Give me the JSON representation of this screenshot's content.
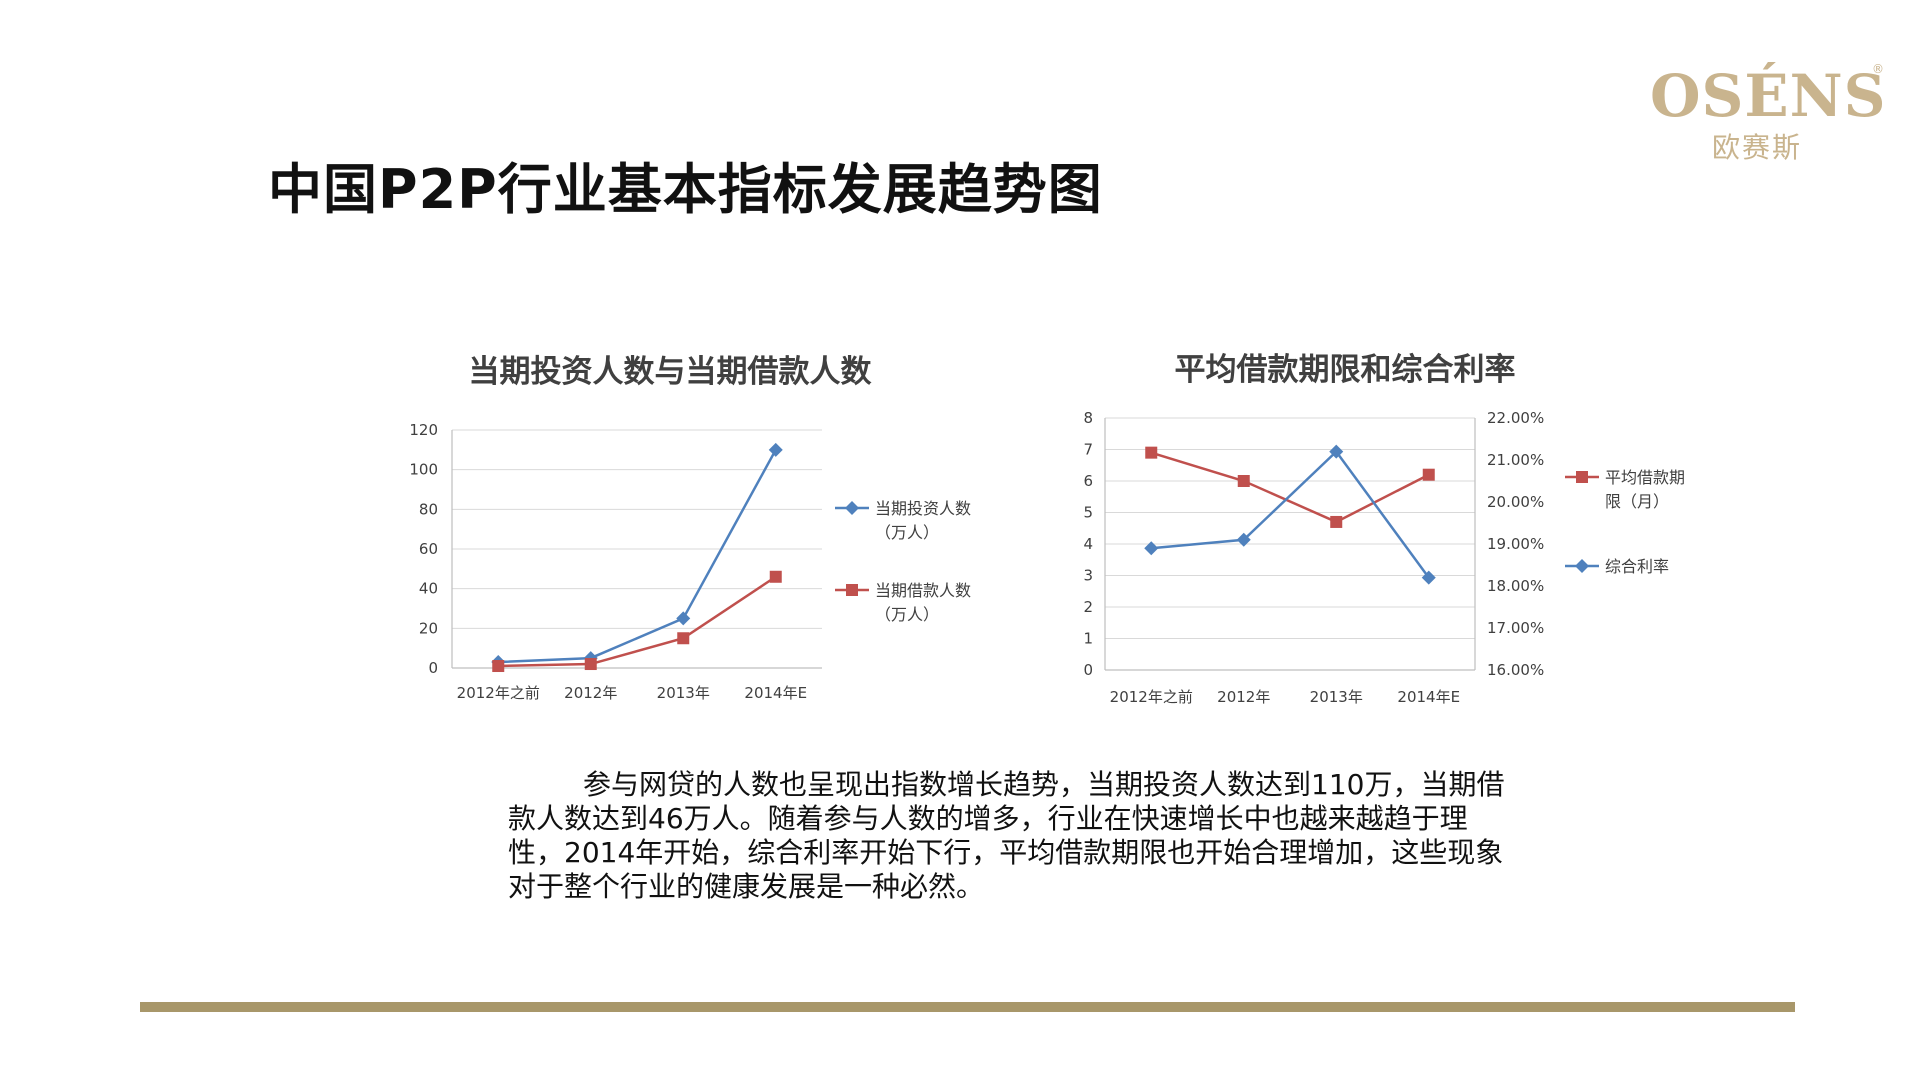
{
  "logo": {
    "main": "OSÉNS",
    "registered": "®",
    "sub": "欧赛斯"
  },
  "page_title": "中国P2P行业基本指标发展趋势图",
  "description": "参与网贷的人数也呈现出指数增长趋势，当期投资人数达到110万，当期借款人数达到46万人。随着参与人数的增多，行业在快速增长中也越来越趋于理性，2014年开始，综合利率开始下行，平均借款期限也开始合理增加，这些现象对于整个行业的健康发展是一种必然。",
  "colors": {
    "blue": "#4f81bd",
    "red": "#c0504d",
    "brand": "#c9b48e",
    "footer": "#a8976a"
  },
  "chart_data": [
    {
      "type": "line",
      "title": "当期投资人数与当期借款人数",
      "categories": [
        "2012年之前",
        "2012年",
        "2013年",
        "2014年E"
      ],
      "ylim": [
        0,
        120
      ],
      "yticks": [
        "0",
        "20",
        "40",
        "60",
        "80",
        "100",
        "120"
      ],
      "grid": true,
      "legend_position": "right",
      "series": [
        {
          "name_lines": [
            "当期投资人数",
            "（万人）"
          ],
          "color": "#4f81bd",
          "marker": "diamond",
          "values": [
            3,
            5,
            25,
            110
          ]
        },
        {
          "name_lines": [
            "当期借款人数",
            "（万人）"
          ],
          "color": "#c0504d",
          "marker": "square",
          "values": [
            1,
            2,
            15,
            46
          ]
        }
      ]
    },
    {
      "type": "line",
      "title": "平均借款期限和综合利率",
      "categories": [
        "2012年之前",
        "2012年",
        "2013年",
        "2014年E"
      ],
      "ylim_left": [
        0,
        8
      ],
      "yticks_left": [
        "0",
        "1",
        "2",
        "3",
        "4",
        "5",
        "6",
        "7",
        "8"
      ],
      "ylim_right": [
        16,
        22
      ],
      "yticks_right": [
        "16.00%",
        "17.00%",
        "18.00%",
        "19.00%",
        "20.00%",
        "21.00%",
        "22.00%"
      ],
      "grid": true,
      "legend_position": "right",
      "series": [
        {
          "name_lines": [
            "平均借款期",
            "限（月）"
          ],
          "color": "#c0504d",
          "marker": "square",
          "axis": "left",
          "values": [
            6.9,
            6.0,
            4.7,
            6.2
          ]
        },
        {
          "name_lines": [
            "综合利率"
          ],
          "color": "#4f81bd",
          "marker": "diamond",
          "axis": "right",
          "values": [
            18.9,
            19.1,
            21.2,
            18.2
          ]
        }
      ]
    }
  ]
}
